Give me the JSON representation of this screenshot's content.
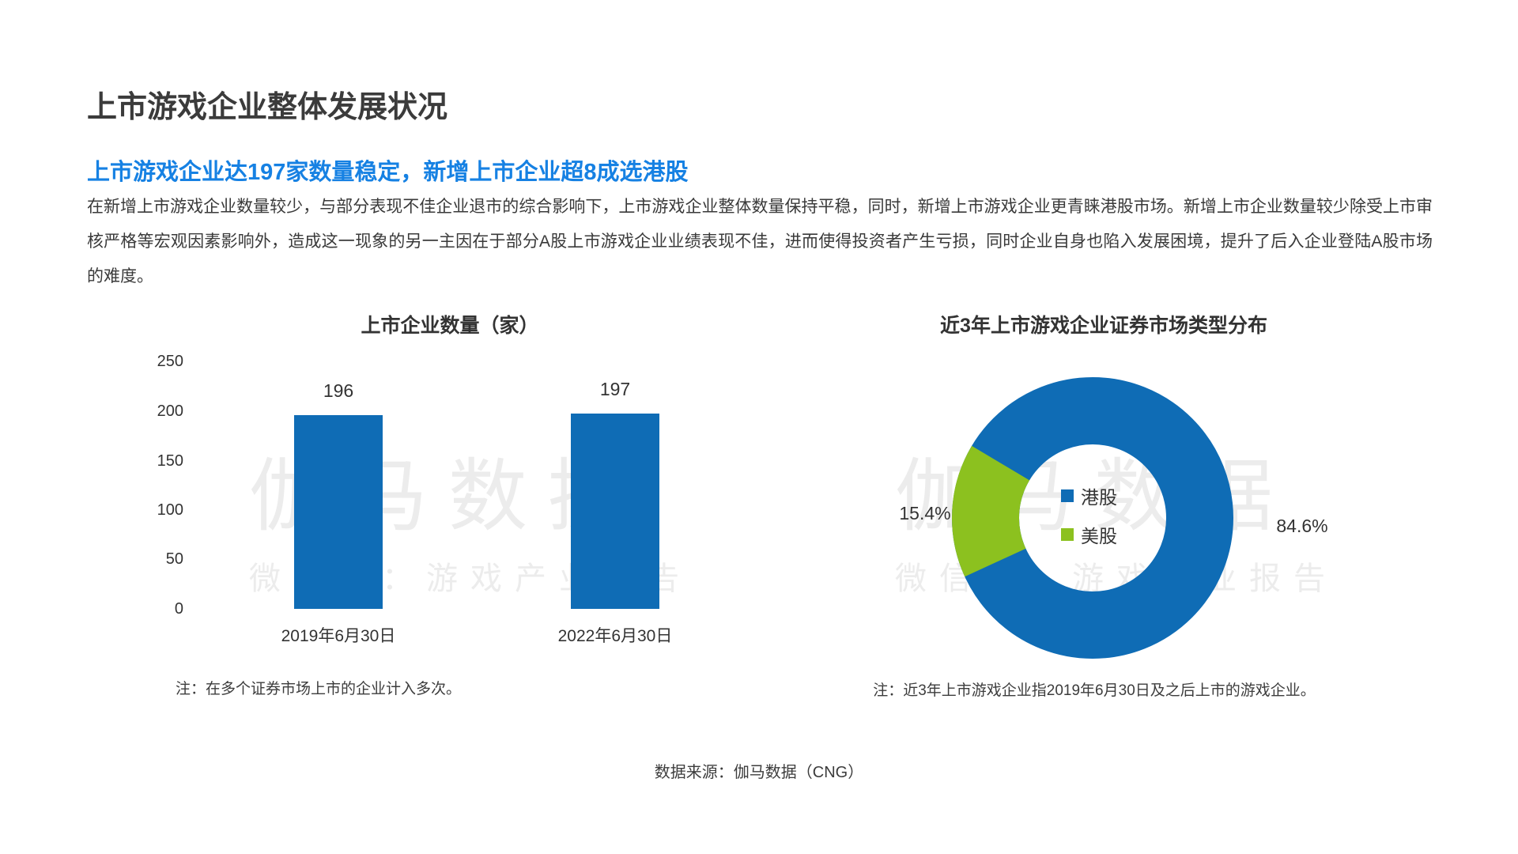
{
  "page": {
    "title": "上市游戏企业整体发展状况",
    "subtitle": "上市游戏企业达197家数量稳定，新增上市企业超8成选港股",
    "paragraph": "在新增上市游戏企业数量较少，与部分表现不佳企业退市的综合影响下，上市游戏企业整体数量保持平稳，同时，新增上市游戏企业更青睐港股市场。新增上市企业数量较少除受上市审核严格等宏观因素影响外，造成这一现象的另一主因在于部分A股上市游戏企业业绩表现不佳，进而使得投资者产生亏损，同时企业自身也陷入发展困境，提升了后入企业登陆A股市场的难度。",
    "source": "数据来源：伽马数据（CNG）"
  },
  "watermark": {
    "brand": "伽马数据",
    "wechat": "微信号：游戏产业报告"
  },
  "colors": {
    "accent_blue": "#1681E3",
    "chart_blue": "#0F6CB5",
    "chart_green": "#8CC11F",
    "text_dark": "#3A3A3A",
    "watermark_gray": "#ECECEC"
  },
  "chart_data": [
    {
      "type": "bar",
      "title": "上市企业数量（家）",
      "categories": [
        "2019年6月30日",
        "2022年6月30日"
      ],
      "values": [
        196,
        197
      ],
      "value_labels": [
        "196",
        "197"
      ],
      "yticks": [
        "250",
        "200",
        "150",
        "100",
        "50",
        "0"
      ],
      "ylim": [
        0,
        250
      ],
      "grid": false,
      "note": "注：在多个证券市场上市的企业计入多次。"
    },
    {
      "type": "pie",
      "donut": true,
      "title": "近3年上市游戏企业证券市场类型分布",
      "labels": [
        "港股",
        "美股"
      ],
      "values": [
        84.6,
        15.4
      ],
      "pct_labels": [
        "84.6%",
        "15.4%"
      ],
      "legend_position": "center",
      "note": "注：近3年上市游戏企业指2019年6月30日及之后上市的游戏企业。",
      "layout": {
        "green_mid_screen_deg": 183,
        "inner_radius_ratio": 0.52
      }
    }
  ]
}
